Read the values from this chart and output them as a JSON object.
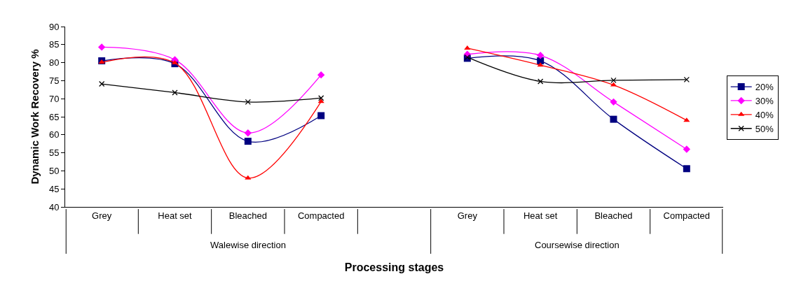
{
  "chart_data": {
    "type": "line",
    "xlabel": "Processing stages",
    "ylabel": "Dynamic Work Recovery %",
    "categories": [
      "Grey",
      "Heat set",
      "Bleached",
      "Compacted",
      null,
      "Grey",
      "Heat set",
      "Bleached",
      "Compacted"
    ],
    "annotations": [
      "Walewise direction",
      "Coursewise direction"
    ],
    "series": [
      {
        "name": "20%",
        "color": "#000080",
        "marker": "square",
        "values": [
          80.5,
          79.7,
          58.2,
          65.3,
          null,
          81.2,
          80.5,
          64.3,
          50.6
        ]
      },
      {
        "name": "30%",
        "color": "#ff00ff",
        "marker": "diamond",
        "values": [
          84.3,
          80.8,
          60.5,
          76.6,
          null,
          82.3,
          82.0,
          69.1,
          56.0
        ]
      },
      {
        "name": "40%",
        "color": "#ff0000",
        "marker": "triangle",
        "values": [
          80.1,
          79.9,
          48.0,
          69.2,
          null,
          84.0,
          79.3,
          73.8,
          64.0
        ]
      },
      {
        "name": "50%",
        "color": "#000000",
        "marker": "cross",
        "values": [
          74.1,
          71.7,
          69.1,
          70.2,
          null,
          81.5,
          74.8,
          75.1,
          75.3
        ]
      }
    ],
    "ylim": [
      40,
      90
    ],
    "yticks": [
      40,
      45,
      50,
      55,
      60,
      65,
      70,
      75,
      80,
      85,
      90
    ],
    "grid": false,
    "legend": "right",
    "line_style": "solid"
  }
}
